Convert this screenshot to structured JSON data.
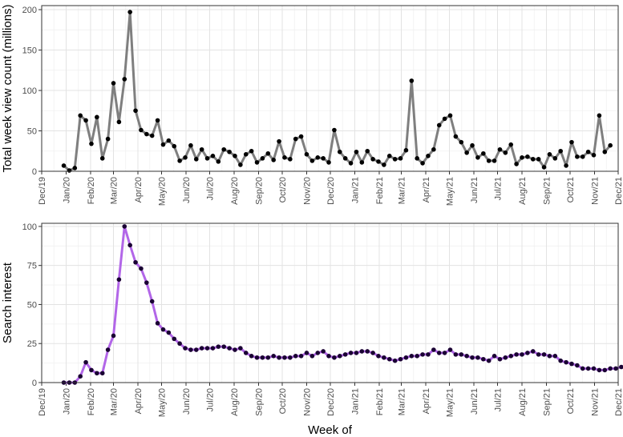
{
  "chart_data": [
    {
      "type": "line",
      "ylabel": "Total week view count (millions)",
      "xlabel": "",
      "xlim": [
        "2019-12-01",
        "2021-12-01"
      ],
      "ylim": [
        0,
        205
      ],
      "y_ticks": [
        0,
        50,
        100,
        150,
        200
      ],
      "x_ticks": [
        "Dec/19",
        "Jan/20",
        "Feb/20",
        "Mar/20",
        "Apr/20",
        "May/20",
        "Jun/20",
        "Jul/20",
        "Aug/20",
        "Sep/20",
        "Oct/20",
        "Nov/20",
        "Dec/20",
        "Jan/21",
        "Feb/21",
        "Mar/21",
        "Apr/21",
        "May/21",
        "Jun/21",
        "Jul/21",
        "Aug/21",
        "Sep/21",
        "Oct/21",
        "Nov/21",
        "Dec/21"
      ],
      "x_tick_dates": [
        "2019-12-01",
        "2020-01-01",
        "2020-02-01",
        "2020-03-01",
        "2020-04-01",
        "2020-05-01",
        "2020-06-01",
        "2020-07-01",
        "2020-08-01",
        "2020-09-01",
        "2020-10-01",
        "2020-11-01",
        "2020-12-01",
        "2021-01-01",
        "2021-02-01",
        "2021-03-01",
        "2021-04-01",
        "2021-05-01",
        "2021-06-01",
        "2021-07-01",
        "2021-08-01",
        "2021-09-01",
        "2021-10-01",
        "2021-11-01",
        "2021-12-01"
      ],
      "grid": true,
      "line_color": "#7f7f7f",
      "point_color": "#000000",
      "series": [
        {
          "x_start": "2019-12-29",
          "x_step_days": 7,
          "values": [
            7,
            1,
            4,
            69,
            63,
            34,
            67,
            16,
            40,
            109,
            61,
            114,
            197,
            75,
            51,
            46,
            44,
            63,
            33,
            38,
            31,
            13,
            17,
            32,
            15,
            27,
            16,
            19,
            12,
            27,
            24,
            19,
            8,
            21,
            25,
            11,
            16,
            22,
            14,
            37,
            17,
            15,
            40,
            43,
            21,
            13,
            17,
            16,
            11,
            51,
            24,
            16,
            10,
            24,
            11,
            25,
            15,
            12,
            8,
            19,
            15,
            16,
            26,
            112,
            16,
            10,
            19,
            27,
            57,
            65,
            69,
            43,
            36,
            23,
            32,
            17,
            22,
            13,
            13,
            27,
            23,
            33,
            9,
            17,
            18,
            15,
            15,
            5,
            21,
            16,
            25,
            7,
            36,
            18,
            18,
            24,
            20,
            69,
            24,
            32
          ]
        }
      ]
    },
    {
      "type": "line",
      "ylabel": "Search interest",
      "xlabel": "Week of",
      "xlim": [
        "2019-12-01",
        "2021-12-01"
      ],
      "ylim": [
        0,
        102
      ],
      "y_ticks": [
        0,
        25,
        50,
        75,
        100
      ],
      "x_ticks": [
        "Dec/19",
        "Jan/20",
        "Feb/20",
        "Mar/20",
        "Apr/20",
        "May/20",
        "Jun/20",
        "Jul/20",
        "Aug/20",
        "Sep/20",
        "Oct/20",
        "Nov/20",
        "Dec/20",
        "Jan/21",
        "Feb/21",
        "Mar/21",
        "Apr/21",
        "May/21",
        "Jun/21",
        "Jul/21",
        "Aug/21",
        "Sep/21",
        "Oct/21",
        "Nov/21",
        "Dec/21"
      ],
      "x_tick_dates": [
        "2019-12-01",
        "2020-01-01",
        "2020-02-01",
        "2020-03-01",
        "2020-04-01",
        "2020-05-01",
        "2020-06-01",
        "2020-07-01",
        "2020-08-01",
        "2020-09-01",
        "2020-10-01",
        "2020-11-01",
        "2020-12-01",
        "2021-01-01",
        "2021-02-01",
        "2021-03-01",
        "2021-04-01",
        "2021-05-01",
        "2021-06-01",
        "2021-07-01",
        "2021-08-01",
        "2021-09-01",
        "2021-10-01",
        "2021-11-01",
        "2021-12-01"
      ],
      "grid": true,
      "line_color": "#b266e8",
      "point_color": "#1a0033",
      "series": [
        {
          "x_start": "2019-12-29",
          "x_step_days": 7,
          "values": [
            0,
            0,
            0,
            4,
            13,
            8,
            6,
            6,
            21,
            30,
            66,
            100,
            88,
            77,
            73,
            64,
            52,
            38,
            34,
            32,
            28,
            25,
            22,
            21,
            21,
            22,
            22,
            22,
            23,
            23,
            22,
            21,
            22,
            19,
            17,
            16,
            16,
            16,
            17,
            16,
            16,
            16,
            17,
            17,
            19,
            17,
            19,
            20,
            17,
            16,
            17,
            18,
            19,
            19,
            20,
            20,
            19,
            17,
            16,
            15,
            14,
            15,
            16,
            17,
            17,
            18,
            18,
            21,
            19,
            19,
            21,
            18,
            18,
            17,
            16,
            16,
            15,
            14,
            17,
            15,
            16,
            17,
            18,
            18,
            19,
            20,
            18,
            18,
            17,
            17,
            14,
            13,
            12,
            11,
            9,
            9,
            9,
            8,
            8,
            9,
            9,
            10
          ]
        }
      ]
    }
  ]
}
